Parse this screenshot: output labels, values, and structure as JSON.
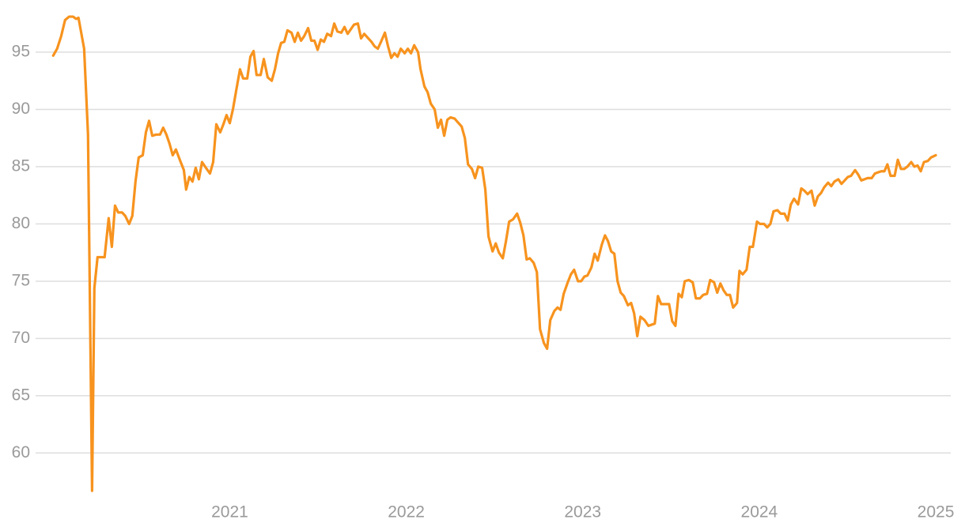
{
  "chart_data": {
    "type": "line",
    "color": "#f7931e",
    "grid": true,
    "xlim": [
      2019.9,
      2025.085
    ],
    "ylim": [
      56.5,
      99
    ],
    "xticks": [
      2021,
      2022,
      2023,
      2024,
      2025
    ],
    "yticks": [
      60,
      65,
      70,
      75,
      80,
      85,
      90,
      95
    ],
    "x": [
      2020.0,
      2020.022,
      2020.045,
      2020.067,
      2020.09,
      2020.112,
      2020.13,
      2020.143,
      2020.175,
      2020.197,
      2020.22,
      2020.233,
      2020.251,
      2020.291,
      2020.314,
      2020.332,
      2020.35,
      2020.368,
      2020.39,
      2020.408,
      2020.43,
      2020.448,
      2020.466,
      2020.484,
      2020.507,
      2020.525,
      2020.543,
      2020.561,
      2020.583,
      2020.605,
      2020.623,
      2020.641,
      2020.659,
      2020.677,
      2020.695,
      2020.717,
      2020.74,
      2020.753,
      2020.771,
      2020.789,
      2020.807,
      2020.825,
      2020.843,
      2020.865,
      2020.888,
      2020.906,
      2020.924,
      2020.946,
      2020.964,
      2020.982,
      2021.0,
      2021.018,
      2021.036,
      2021.058,
      2021.076,
      2021.099,
      2021.117,
      2021.135,
      2021.152,
      2021.175,
      2021.193,
      2021.215,
      2021.238,
      2021.256,
      2021.274,
      2021.291,
      2021.309,
      2021.327,
      2021.35,
      2021.368,
      2021.386,
      2021.404,
      2021.422,
      2021.444,
      2021.462,
      2021.48,
      2021.498,
      2021.516,
      2021.534,
      2021.552,
      2021.574,
      2021.592,
      2021.61,
      2021.632,
      2021.65,
      2021.668,
      2021.686,
      2021.704,
      2021.726,
      2021.744,
      2021.762,
      2021.785,
      2021.803,
      2021.821,
      2021.839,
      2021.857,
      2021.879,
      2021.897,
      2021.915,
      2021.933,
      2021.951,
      2021.969,
      2021.991,
      2022.009,
      2022.027,
      2022.045,
      2022.067,
      2022.081,
      2022.103,
      2022.121,
      2022.139,
      2022.161,
      2022.179,
      2022.197,
      2022.215,
      2022.233,
      2022.251,
      2022.274,
      2022.291,
      2022.314,
      2022.332,
      2022.35,
      2022.372,
      2022.39,
      2022.408,
      2022.43,
      2022.448,
      2022.466,
      2022.489,
      2022.507,
      2022.525,
      2022.547,
      2022.565,
      2022.583,
      2022.605,
      2022.628,
      2022.646,
      2022.664,
      2022.682,
      2022.7,
      2022.722,
      2022.74,
      2022.758,
      2022.78,
      2022.798,
      2022.816,
      2022.839,
      2022.857,
      2022.874,
      2022.892,
      2022.915,
      2022.933,
      2022.951,
      2022.973,
      2022.991,
      2023.009,
      2023.027,
      2023.049,
      2023.067,
      2023.085,
      2023.108,
      2023.126,
      2023.143,
      2023.161,
      2023.179,
      2023.197,
      2023.215,
      2023.233,
      2023.256,
      2023.274,
      2023.291,
      2023.309,
      2023.327,
      2023.35,
      2023.372,
      2023.39,
      2023.408,
      2023.426,
      2023.444,
      2023.466,
      2023.489,
      2023.507,
      2023.525,
      2023.543,
      2023.561,
      2023.578,
      2023.601,
      2023.623,
      2023.641,
      2023.664,
      2023.682,
      2023.704,
      2023.722,
      2023.744,
      2023.762,
      2023.78,
      2023.798,
      2023.816,
      2023.834,
      2023.852,
      2023.874,
      2023.888,
      2023.906,
      2023.928,
      2023.946,
      2023.964,
      2023.987,
      2024.004,
      2024.027,
      2024.045,
      2024.063,
      2024.081,
      2024.103,
      2024.121,
      2024.143,
      2024.161,
      2024.179,
      2024.197,
      2024.22,
      2024.238,
      2024.256,
      2024.274,
      2024.296,
      2024.314,
      2024.332,
      2024.35,
      2024.368,
      2024.39,
      2024.408,
      2024.426,
      2024.448,
      2024.466,
      2024.484,
      2024.502,
      2024.52,
      2024.543,
      2024.561,
      2024.578,
      2024.596,
      2024.614,
      2024.637,
      2024.655,
      2024.673,
      2024.691,
      2024.709,
      2024.726,
      2024.744,
      2024.767,
      2024.785,
      2024.803,
      2024.821,
      2024.839,
      2024.861,
      2024.879,
      2024.897,
      2024.915,
      2024.933,
      2024.955,
      2024.973,
      2025.0
    ],
    "values": [
      94.7,
      95.3,
      96.4,
      97.8,
      98.1,
      98.1,
      97.9,
      98.0,
      95.3,
      87.8,
      56.7,
      74.4,
      77.1,
      77.1,
      80.5,
      78.0,
      81.6,
      81.0,
      81.0,
      80.7,
      80.0,
      80.7,
      83.7,
      85.8,
      86.0,
      88.0,
      89.0,
      87.7,
      87.8,
      87.8,
      88.4,
      87.8,
      87.0,
      86.0,
      86.5,
      85.6,
      84.7,
      83.0,
      84.1,
      83.7,
      84.9,
      83.9,
      85.4,
      84.9,
      84.4,
      85.4,
      88.7,
      88.0,
      88.7,
      89.5,
      88.8,
      90.0,
      91.6,
      93.5,
      92.7,
      92.7,
      94.6,
      95.1,
      93.0,
      93.0,
      94.4,
      92.8,
      92.5,
      93.5,
      94.9,
      95.8,
      95.9,
      96.9,
      96.7,
      95.9,
      96.7,
      96.0,
      96.4,
      97.1,
      96.0,
      96.0,
      95.2,
      96.1,
      95.9,
      96.6,
      96.4,
      97.5,
      96.8,
      96.7,
      97.2,
      96.6,
      97.0,
      97.4,
      97.5,
      96.2,
      96.6,
      96.2,
      95.9,
      95.5,
      95.3,
      95.9,
      96.7,
      95.5,
      94.5,
      94.9,
      94.6,
      95.3,
      94.9,
      95.3,
      94.9,
      95.6,
      95.0,
      93.5,
      92.0,
      91.5,
      90.5,
      90.0,
      88.4,
      89.1,
      87.7,
      89.1,
      89.3,
      89.2,
      88.9,
      88.5,
      87.5,
      85.2,
      84.8,
      84.0,
      85.0,
      84.9,
      83.0,
      78.9,
      77.6,
      78.3,
      77.5,
      77.0,
      78.5,
      80.2,
      80.4,
      80.9,
      80.1,
      79.0,
      76.9,
      77.0,
      76.6,
      75.8,
      70.8,
      69.6,
      69.1,
      71.6,
      72.4,
      72.7,
      72.5,
      73.9,
      74.9,
      75.6,
      76.0,
      75.0,
      75.0,
      75.4,
      75.5,
      76.2,
      77.4,
      76.8,
      78.2,
      79.0,
      78.5,
      77.6,
      77.4,
      75.0,
      74.0,
      73.7,
      72.9,
      73.1,
      72.2,
      70.2,
      71.9,
      71.6,
      71.1,
      71.2,
      71.3,
      73.7,
      73.0,
      73.0,
      73.0,
      71.5,
      71.1,
      73.9,
      73.6,
      75.0,
      75.1,
      74.9,
      73.5,
      73.5,
      73.8,
      73.9,
      75.1,
      74.9,
      74.0,
      74.8,
      74.2,
      73.8,
      73.8,
      72.7,
      73.1,
      75.9,
      75.6,
      76.0,
      78.0,
      78.0,
      80.2,
      80.0,
      80.0,
      79.7,
      80.0,
      81.1,
      81.2,
      80.9,
      80.9,
      80.3,
      81.7,
      82.2,
      81.7,
      83.1,
      82.9,
      82.6,
      82.9,
      81.6,
      82.4,
      82.7,
      83.2,
      83.6,
      83.3,
      83.7,
      83.9,
      83.5,
      83.8,
      84.1,
      84.2,
      84.7,
      84.3,
      83.8,
      83.9,
      84.0,
      84.0,
      84.4,
      84.5,
      84.6,
      84.6,
      85.2,
      84.2,
      84.2,
      85.6,
      84.8,
      84.8,
      85.0,
      85.4,
      85.0,
      85.1,
      84.6,
      85.4,
      85.5,
      85.8,
      86.0
    ]
  }
}
